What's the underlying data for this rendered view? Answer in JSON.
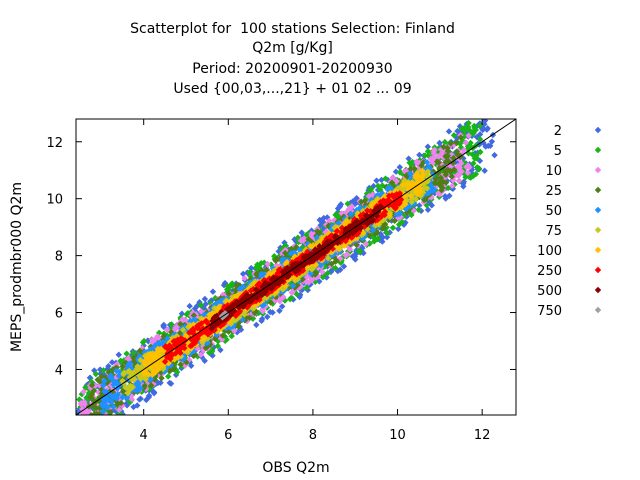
{
  "chart_data": {
    "type": "scatter",
    "title_lines": [
      "Scatterplot for  100 stations Selection: Finland",
      "Q2m [g/Kg]",
      "Period: 20200901-20200930",
      "Used {00,03,...,21} + 01 02 ... 09"
    ],
    "xlabel": "OBS Q2m",
    "ylabel": "MEPS_prodmbr000 Q2m",
    "xlim": [
      2.4,
      12.8
    ],
    "ylim": [
      2.4,
      12.8
    ],
    "xticks": [
      4,
      6,
      8,
      10,
      12
    ],
    "yticks": [
      4,
      6,
      8,
      10,
      12
    ],
    "grid": false,
    "diagonal_line": true,
    "legend_position": "right",
    "density_classes": [
      {
        "label": "2",
        "color": "#4169e1",
        "halfwidth": 1.15,
        "x_range": [
          2.4,
          12.3
        ]
      },
      {
        "label": "5",
        "color": "#18b418",
        "halfwidth": 1.0,
        "x_range": [
          2.4,
          12.0
        ]
      },
      {
        "label": "10",
        "color": "#ee82ee",
        "halfwidth": 0.85,
        "x_range": [
          2.5,
          11.7
        ]
      },
      {
        "label": "25",
        "color": "#4f7d16",
        "halfwidth": 0.75,
        "x_range": [
          2.7,
          11.5
        ]
      },
      {
        "label": "50",
        "color": "#1e90ff",
        "halfwidth": 0.6,
        "x_range": [
          3.0,
          10.9
        ]
      },
      {
        "label": "75",
        "color": "#c8c81a",
        "halfwidth": 0.48,
        "x_range": [
          3.5,
          10.8
        ]
      },
      {
        "label": "100",
        "color": "#ffc000",
        "halfwidth": 0.4,
        "x_range": [
          4.0,
          10.6
        ]
      },
      {
        "label": "250",
        "color": "#ff0000",
        "halfwidth": 0.3,
        "x_range": [
          4.5,
          10.1
        ]
      },
      {
        "label": "500",
        "color": "#8b0000",
        "halfwidth": 0.18,
        "x_range": [
          5.6,
          9.6
        ]
      },
      {
        "label": "750",
        "color": "#a0a0a0",
        "halfwidth": 0.05,
        "x_range": [
          5.85,
          5.95
        ]
      }
    ]
  }
}
